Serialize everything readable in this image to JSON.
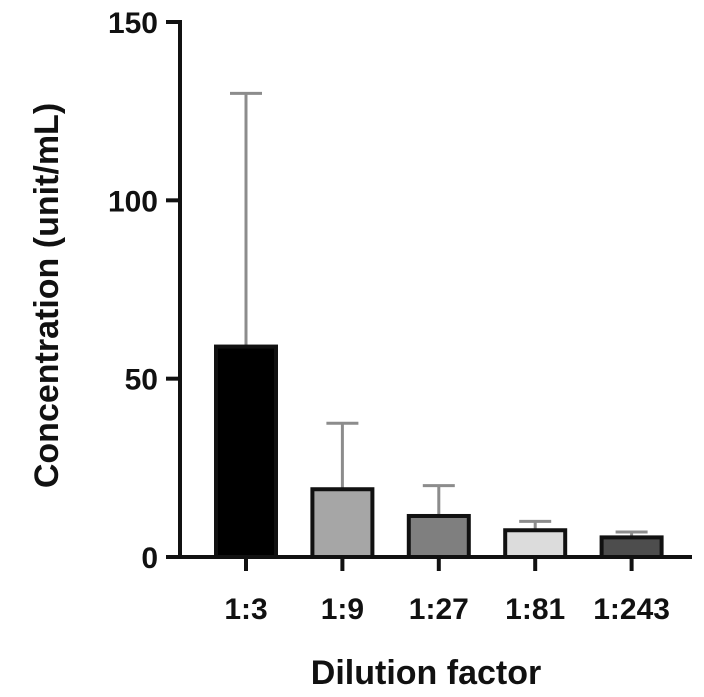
{
  "chart_data": {
    "type": "bar",
    "title": "",
    "xlabel": "Dilution factor",
    "ylabel": "Concentration (unit/mL)",
    "ylim": [
      0,
      150
    ],
    "yticks": [
      "0",
      "50",
      "100",
      "150"
    ],
    "grid": false,
    "categories": [
      "1:3",
      "1:9",
      "1:27",
      "1:81",
      "1:243"
    ],
    "values": [
      59,
      19,
      11.5,
      7.5,
      5.5
    ],
    "error_upper": [
      130,
      37.5,
      20,
      10,
      7
    ],
    "bar_colors": [
      "#000000",
      "#a6a6a6",
      "#7f7f7f",
      "#dcdcdc",
      "#4d4d4d"
    ],
    "error_color": "#8c8c8c"
  }
}
